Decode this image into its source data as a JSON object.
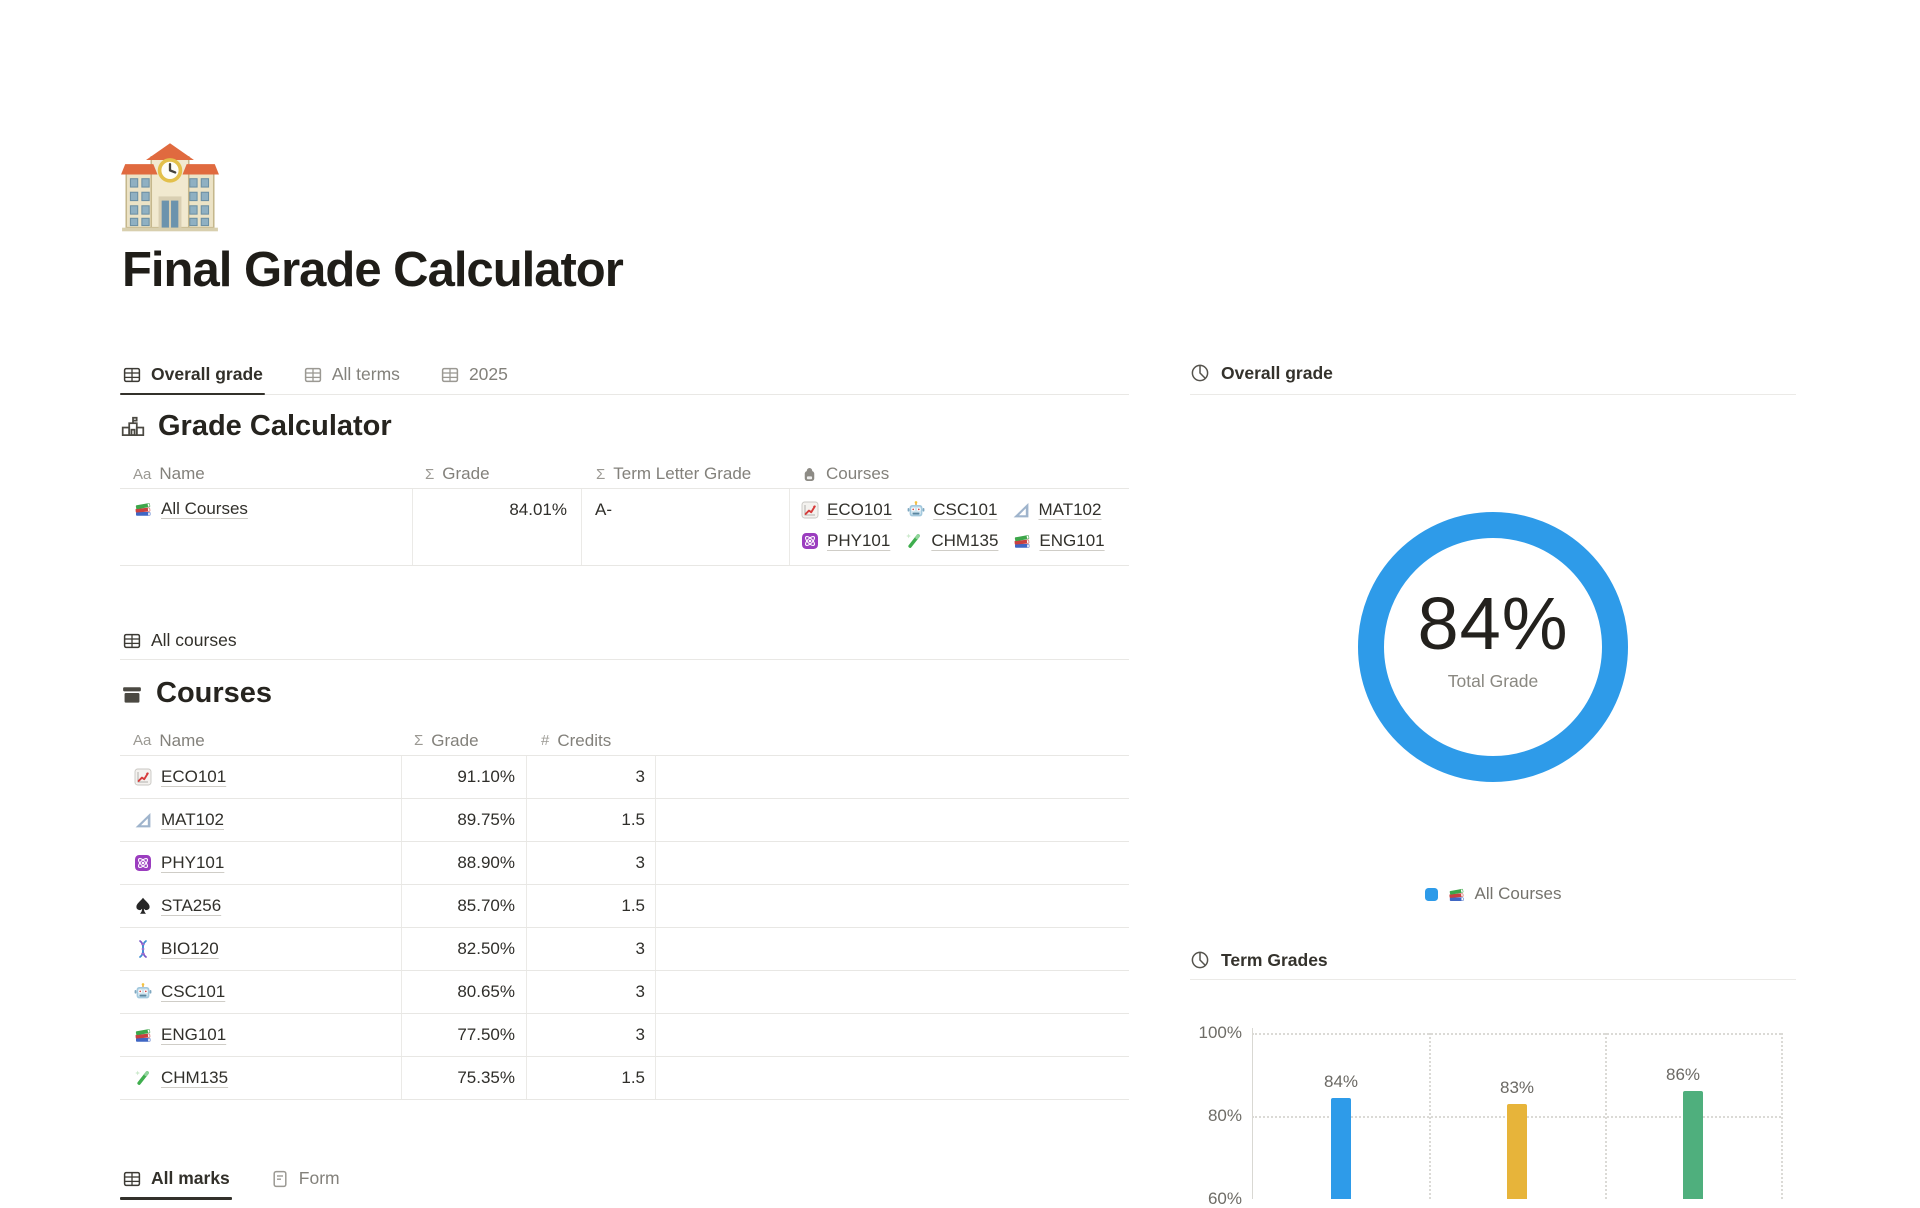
{
  "page": {
    "title": "Final Grade Calculator",
    "icon": "school"
  },
  "view_tabs": {
    "items": [
      {
        "label": "Overall grade",
        "icon": "table",
        "active": true
      },
      {
        "label": "All terms",
        "icon": "table",
        "active": false
      },
      {
        "label": "2025",
        "icon": "table",
        "active": false
      }
    ]
  },
  "grade_calculator": {
    "heading": "Grade Calculator",
    "heading_icon": "school-line",
    "columns": {
      "name": "Name",
      "grade": "Grade",
      "letter": "Term Letter Grade",
      "courses": "Courses"
    },
    "column_icons": {
      "name": "Aa",
      "grade": "Σ",
      "letter": "Σ",
      "courses": "backpack"
    },
    "row": {
      "icon": "books",
      "name": "All Courses",
      "grade": "84.01%",
      "letter": "A-",
      "courses": [
        {
          "name": "ECO101",
          "icon": "chart-up"
        },
        {
          "name": "CSC101",
          "icon": "robot"
        },
        {
          "name": "MAT102",
          "icon": "ruler"
        },
        {
          "name": "PHY101",
          "icon": "atom"
        },
        {
          "name": "CHM135",
          "icon": "tube"
        },
        {
          "name": "ENG101",
          "icon": "books"
        }
      ]
    }
  },
  "courses_view_tab": {
    "label": "All courses",
    "icon": "table"
  },
  "courses_table": {
    "heading": "Courses",
    "heading_icon": "archive",
    "columns": {
      "name": "Name",
      "grade": "Grade",
      "credits": "Credits"
    },
    "column_icons": {
      "name": "Aa",
      "grade": "Σ",
      "credits": "#"
    },
    "rows": [
      {
        "icon": "chart-up",
        "name": "ECO101",
        "grade": "91.10%",
        "credits": "3"
      },
      {
        "icon": "ruler",
        "name": "MAT102",
        "grade": "89.75%",
        "credits": "1.5"
      },
      {
        "icon": "atom",
        "name": "PHY101",
        "grade": "88.90%",
        "credits": "3"
      },
      {
        "icon": "spade",
        "name": "STA256",
        "grade": "85.70%",
        "credits": "1.5"
      },
      {
        "icon": "dna",
        "name": "BIO120",
        "grade": "82.50%",
        "credits": "3"
      },
      {
        "icon": "robot",
        "name": "CSC101",
        "grade": "80.65%",
        "credits": "3"
      },
      {
        "icon": "books",
        "name": "ENG101",
        "grade": "77.50%",
        "credits": "3"
      },
      {
        "icon": "tube",
        "name": "CHM135",
        "grade": "75.35%",
        "credits": "1.5"
      }
    ]
  },
  "bottom_tabs": {
    "items": [
      {
        "label": "All marks",
        "icon": "table",
        "active": true
      },
      {
        "label": "Form",
        "icon": "doc",
        "active": false
      }
    ]
  },
  "overall_chart": {
    "header": "Overall grade",
    "header_icon": "pie",
    "center_value": "84%",
    "center_label": "Total Grade",
    "legend": {
      "label": "All Courses",
      "icon": "books",
      "color": "#2E9BE9"
    },
    "chart_data": {
      "type": "donut",
      "series": [
        {
          "name": "All Courses",
          "value": 84
        }
      ],
      "max": 100,
      "center_value": "84%",
      "center_label": "Total Grade",
      "color": "#2E9BE9",
      "legend_position": "bottom"
    }
  },
  "term_chart": {
    "header": "Term Grades",
    "header_icon": "pie",
    "chart_data": {
      "type": "bar",
      "categories": [
        "",
        "",
        ""
      ],
      "values": [
        84,
        83,
        86
      ],
      "bar_labels": [
        "84%",
        "83%",
        "86%"
      ],
      "bar_colors": [
        "#2E9BE9",
        "#E7B43A",
        "#4FAF7D"
      ],
      "yticks": [
        "100%",
        "80%",
        "60%"
      ],
      "ylim_visible": [
        60,
        100
      ],
      "grid": "dotted",
      "note": "bottom of chart cut off by viewport"
    }
  }
}
